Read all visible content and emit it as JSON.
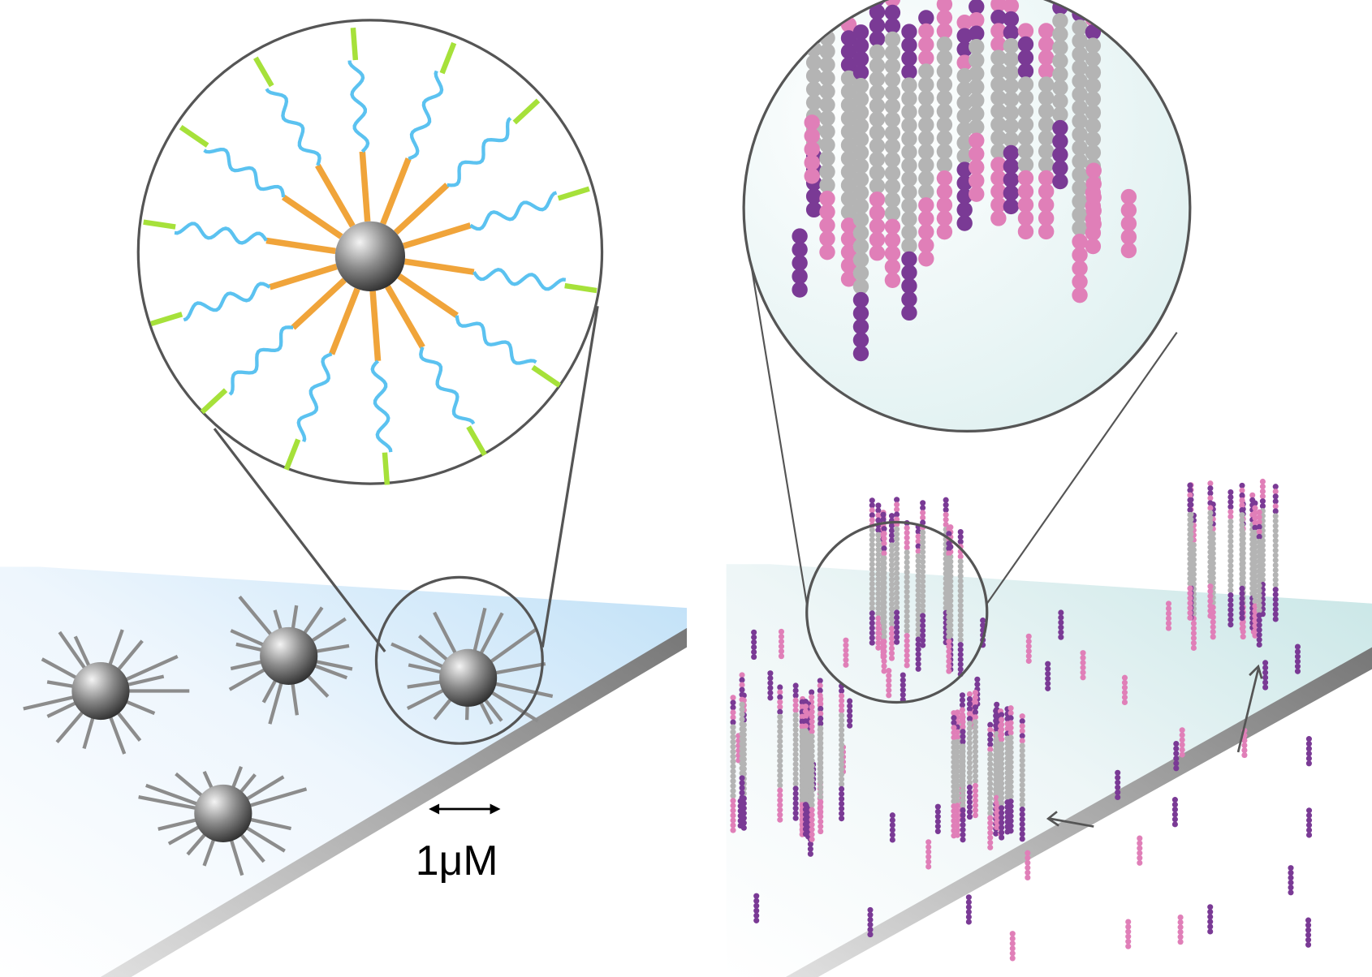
{
  "scale_bar": {
    "label": "1μM"
  }
}
